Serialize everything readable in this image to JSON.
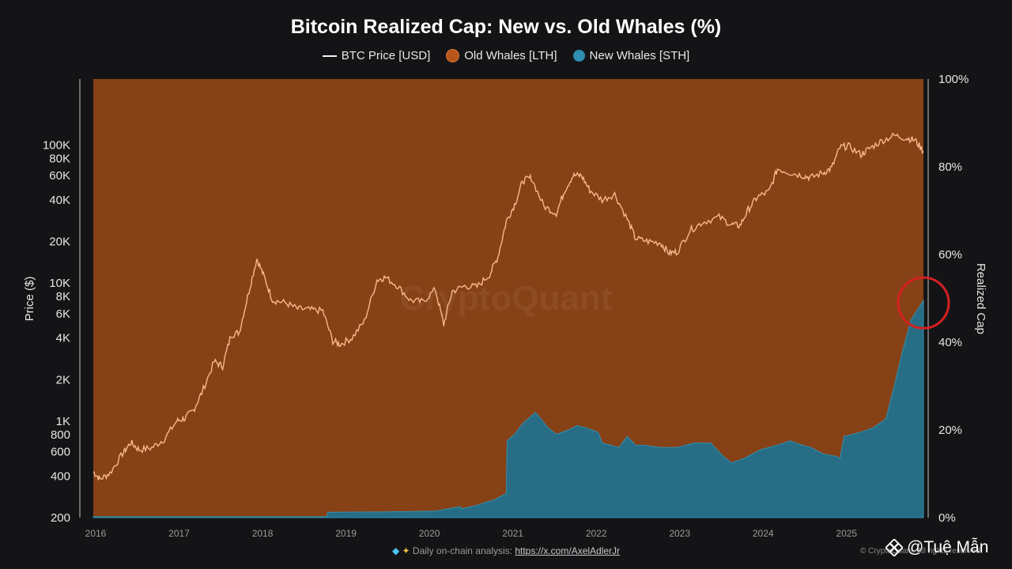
{
  "title": "Bitcoin Realized Cap: New vs. Old Whales (%)",
  "legend": [
    {
      "label": "BTC Price [USD]",
      "icon": "line-icon",
      "color": "#f4f4f4"
    },
    {
      "label": "Old Whales [LTH]",
      "icon": "dot-icon",
      "color": "#b8561a"
    },
    {
      "label": "New Whales [STH]",
      "icon": "dot-icon",
      "color": "#2e8fb0"
    }
  ],
  "colors": {
    "background": "#141417",
    "old_whales_fill": "#874116",
    "new_whales_fill": "#276d86",
    "price_line": "#f6b98c",
    "highlight_circle": "#d42020"
  },
  "watermark": "CryptoQuant",
  "footer": {
    "text": "Daily on-chain analysis:",
    "link": "https://x.com/AxelAdlerJr",
    "copyright": "© CryptoQuant. All rights reserved."
  },
  "brand": {
    "icon": "binance-icon",
    "handle": "@Tuệ Mẫn"
  },
  "chart_data": {
    "type": "area",
    "title": "Bitcoin Realized Cap: New vs. Old Whales (%)",
    "xlabel": "",
    "ylabel_left": "Price ($)",
    "ylabel_right": "Realized Cap",
    "x_ticks": [
      "2016",
      "2017",
      "2018",
      "2019",
      "2020",
      "2021",
      "2022",
      "2023",
      "2024",
      "2025"
    ],
    "y_left_scale": "log",
    "y_left_ticks": [
      "200",
      "400",
      "600",
      "800",
      "1K",
      "2K",
      "4K",
      "6K",
      "8K",
      "10K",
      "20K",
      "40K",
      "60K",
      "80K",
      "100K"
    ],
    "y_left_tick_values": [
      200,
      400,
      600,
      800,
      1000,
      2000,
      4000,
      6000,
      8000,
      10000,
      20000,
      40000,
      60000,
      80000,
      100000
    ],
    "y_left_range": [
      200,
      300000
    ],
    "y_right_ticks": [
      "0%",
      "20%",
      "40%",
      "60%",
      "80%",
      "100%"
    ],
    "y_right_tick_values": [
      0,
      20,
      40,
      60,
      80,
      100
    ],
    "y_right_range": [
      0,
      100
    ],
    "x_range": [
      2016.0,
      2025.95
    ],
    "grid": false,
    "legend_position": "top",
    "annotation": "red circle highlighting New Whales share near 50% at end of 2025",
    "series": [
      {
        "name": "BTC Price [USD]",
        "type": "line",
        "axis": "left",
        "x": [
          2016.0,
          2016.08,
          2016.2,
          2016.35,
          2016.45,
          2016.55,
          2016.7,
          2016.85,
          2017.0,
          2017.1,
          2017.2,
          2017.3,
          2017.45,
          2017.55,
          2017.65,
          2017.75,
          2017.85,
          2017.96,
          2018.05,
          2018.15,
          2018.3,
          2018.45,
          2018.6,
          2018.75,
          2018.87,
          2018.96,
          2019.1,
          2019.25,
          2019.4,
          2019.5,
          2019.65,
          2019.8,
          2019.95,
          2020.1,
          2020.2,
          2020.3,
          2020.45,
          2020.6,
          2020.75,
          2020.85,
          2020.95,
          2021.05,
          2021.15,
          2021.25,
          2021.4,
          2021.55,
          2021.65,
          2021.75,
          2021.85,
          2021.95,
          2022.1,
          2022.25,
          2022.4,
          2022.5,
          2022.65,
          2022.8,
          2022.9,
          2023.0,
          2023.15,
          2023.3,
          2023.5,
          2023.65,
          2023.75,
          2023.85,
          2023.96,
          2024.1,
          2024.2,
          2024.35,
          2024.5,
          2024.6,
          2024.75,
          2024.85,
          2024.95,
          2025.05,
          2025.2,
          2025.3,
          2025.45,
          2025.6,
          2025.75,
          2025.85,
          2025.95
        ],
        "values": [
          430,
          380,
          420,
          580,
          700,
          620,
          640,
          740,
          1000,
          1050,
          1200,
          1600,
          2700,
          2500,
          4200,
          4400,
          8000,
          15000,
          11000,
          7500,
          7200,
          6500,
          6400,
          6300,
          3800,
          3600,
          4000,
          5300,
          10500,
          11000,
          9500,
          7500,
          7300,
          9000,
          5000,
          8700,
          9500,
          9400,
          11500,
          15500,
          28000,
          37000,
          55000,
          58000,
          36000,
          32000,
          47000,
          60000,
          60000,
          47000,
          40000,
          44000,
          29000,
          21000,
          20000,
          19500,
          16500,
          16800,
          24000,
          27500,
          30000,
          26500,
          26000,
          34000,
          42000,
          46000,
          67000,
          63000,
          60000,
          58000,
          63000,
          68000,
          96000,
          98000,
          85000,
          94000,
          107000,
          117000,
          112000,
          108000,
          90000
        ]
      },
      {
        "name": "New Whales [STH]",
        "type": "area",
        "axis": "right",
        "x": [
          2016.0,
          2018.8,
          2018.81,
          2019.5,
          2020.1,
          2020.4,
          2020.41,
          2020.6,
          2020.7,
          2020.8,
          2020.9,
          2020.95,
          2020.96,
          2021.05,
          2021.15,
          2021.3,
          2021.45,
          2021.55,
          2021.7,
          2021.8,
          2021.9,
          2022.05,
          2022.1,
          2022.3,
          2022.4,
          2022.5,
          2022.6,
          2022.8,
          2023.0,
          2023.2,
          2023.4,
          2023.55,
          2023.65,
          2023.8,
          2024.0,
          2024.2,
          2024.35,
          2024.5,
          2024.6,
          2024.75,
          2024.9,
          2024.95,
          2025.0,
          2025.2,
          2025.35,
          2025.5,
          2025.6,
          2025.7,
          2025.8,
          2025.85,
          2025.9,
          2025.95
        ],
        "values": [
          0.2,
          0.2,
          1.2,
          1.3,
          1.5,
          2.5,
          2.0,
          2.8,
          3.5,
          4.0,
          5.0,
          5.5,
          17.5,
          19.0,
          21.5,
          24.0,
          20.5,
          19.0,
          20.0,
          21.0,
          20.5,
          19.5,
          17.0,
          16.0,
          18.5,
          16.5,
          16.5,
          16.0,
          16.0,
          17.0,
          17.0,
          14.0,
          12.5,
          13.5,
          15.5,
          16.5,
          17.5,
          16.5,
          16.0,
          14.5,
          14.0,
          13.5,
          18.5,
          19.5,
          20.5,
          22.5,
          30.0,
          38.0,
          45.0,
          46.5,
          48.0,
          49.5
        ]
      },
      {
        "name": "Old Whales [LTH]",
        "type": "area",
        "axis": "right",
        "note": "fills remainder to 100%"
      }
    ]
  }
}
